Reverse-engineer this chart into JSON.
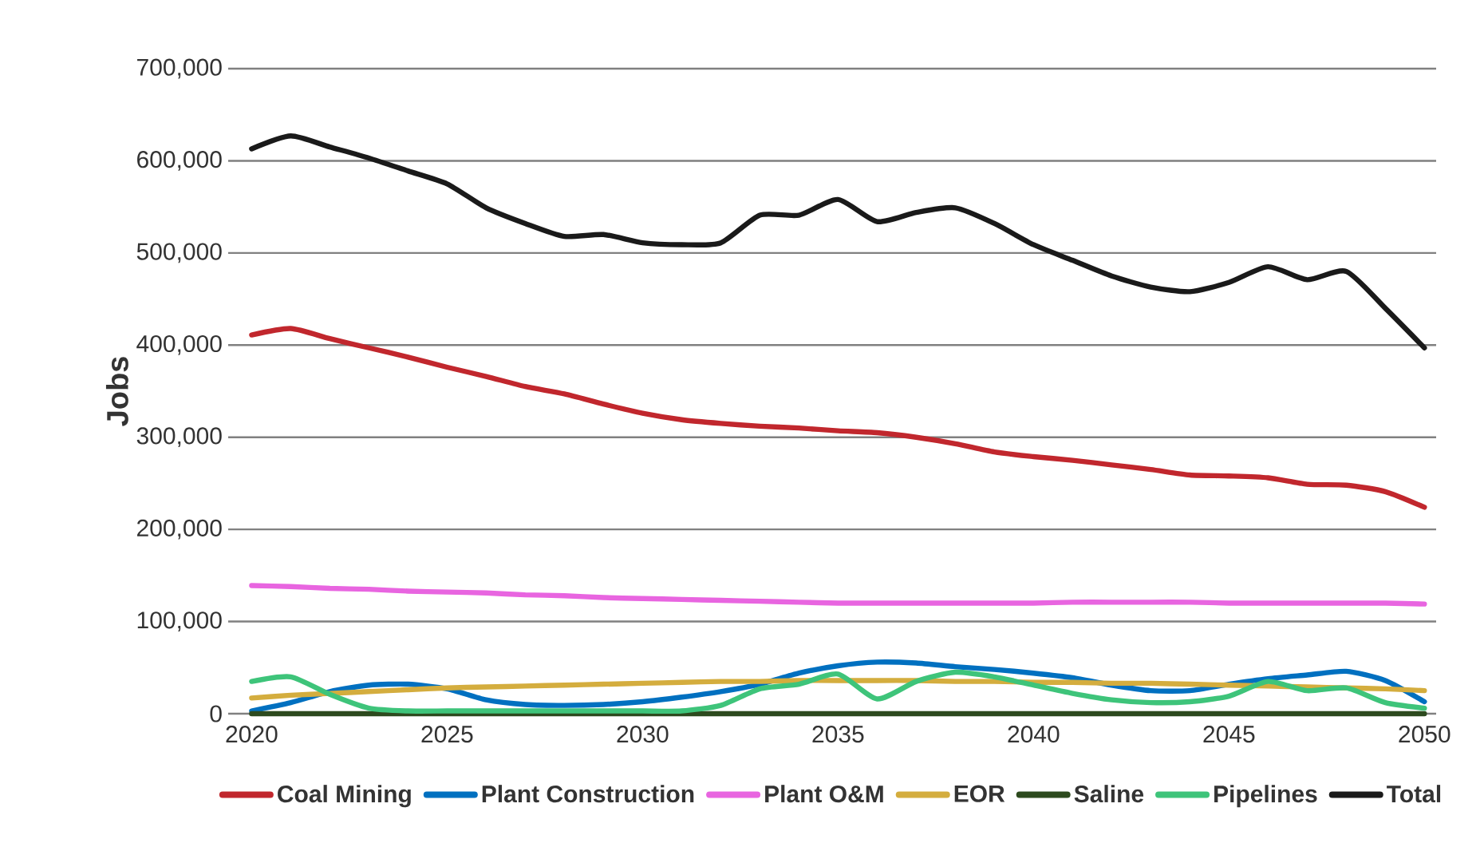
{
  "chart_data": {
    "type": "line",
    "ylabel": "Jobs",
    "x": [
      2020,
      2021,
      2022,
      2023,
      2024,
      2025,
      2026,
      2027,
      2028,
      2029,
      2030,
      2031,
      2032,
      2033,
      2034,
      2035,
      2036,
      2037,
      2038,
      2039,
      2040,
      2041,
      2042,
      2043,
      2044,
      2045,
      2046,
      2047,
      2048,
      2049,
      2050
    ],
    "xlim": [
      2019.4,
      2050.3
    ],
    "xticks": [
      2020,
      2025,
      2030,
      2035,
      2040,
      2045,
      2050
    ],
    "ylim": [
      0,
      700000
    ],
    "yticks": [
      {
        "value": 0,
        "label": "0"
      },
      {
        "value": 100000,
        "label": "100,000"
      },
      {
        "value": 200000,
        "label": "200,000"
      },
      {
        "value": 300000,
        "label": "300,000"
      },
      {
        "value": 400000,
        "label": "400,000"
      },
      {
        "value": 500000,
        "label": "500,000"
      },
      {
        "value": 600000,
        "label": "600,000"
      },
      {
        "value": 700000,
        "label": "700,000"
      }
    ],
    "grid": "y",
    "legend": "bottom",
    "series": [
      {
        "name": "Coal Mining",
        "color": "#c1272d",
        "values": [
          411000,
          418000,
          407000,
          397000,
          387000,
          376000,
          366000,
          355000,
          347000,
          336000,
          326000,
          319000,
          315000,
          312000,
          310000,
          307000,
          305000,
          300000,
          293000,
          284000,
          279000,
          275000,
          270000,
          265000,
          259000,
          258000,
          256000,
          249000,
          248000,
          241000,
          224000
        ]
      },
      {
        "name": "Plant Construction",
        "color": "#0070c0",
        "values": [
          3000,
          12000,
          24000,
          31000,
          32000,
          27000,
          15000,
          10000,
          9000,
          10000,
          13000,
          18000,
          24000,
          32000,
          44000,
          52000,
          56000,
          55000,
          51000,
          48000,
          44000,
          39000,
          31000,
          25000,
          25000,
          32000,
          38000,
          42000,
          46000,
          36000,
          13000
        ]
      },
      {
        "name": "Plant O&M",
        "color": "#e865e0",
        "values": [
          139000,
          138000,
          136000,
          135000,
          133000,
          132000,
          131000,
          129000,
          128000,
          126000,
          125000,
          124000,
          123000,
          122000,
          121000,
          120000,
          120000,
          120000,
          120000,
          120000,
          120000,
          121000,
          121000,
          121000,
          121000,
          120000,
          120000,
          120000,
          120000,
          120000,
          119000
        ]
      },
      {
        "name": "EOR",
        "color": "#d4ad3e",
        "values": [
          17000,
          20000,
          22000,
          24000,
          26000,
          28000,
          29000,
          30000,
          31000,
          32000,
          33000,
          34000,
          35000,
          35000,
          36000,
          36000,
          36000,
          36000,
          35000,
          35000,
          34000,
          34000,
          33000,
          33000,
          32000,
          31000,
          30000,
          29000,
          28000,
          27000,
          25000
        ]
      },
      {
        "name": "Saline",
        "color": "#2d4a1e",
        "values": [
          0,
          0,
          0,
          0,
          0,
          0,
          0,
          0,
          0,
          0,
          0,
          0,
          0,
          0,
          0,
          0,
          0,
          0,
          0,
          0,
          0,
          0,
          0,
          0,
          0,
          0,
          0,
          0,
          0,
          0,
          0
        ]
      },
      {
        "name": "Pipelines",
        "color": "#3ec47a",
        "values": [
          35000,
          40000,
          21000,
          6000,
          3000,
          3000,
          3000,
          3000,
          3000,
          3000,
          3000,
          3000,
          9000,
          27000,
          32000,
          43000,
          16000,
          35000,
          45000,
          40000,
          31000,
          22000,
          15000,
          12000,
          13000,
          19000,
          35000,
          25000,
          28000,
          12000,
          6000
        ]
      },
      {
        "name": "Total",
        "color": "#1a1a1a",
        "values": [
          613000,
          627000,
          615000,
          603000,
          589000,
          575000,
          549000,
          532000,
          518000,
          520000,
          511000,
          509000,
          511000,
          541000,
          541000,
          558000,
          534000,
          544000,
          549000,
          532000,
          509000,
          492000,
          475000,
          463000,
          458000,
          468000,
          485000,
          471000,
          480000,
          440000,
          397000
        ]
      }
    ]
  }
}
